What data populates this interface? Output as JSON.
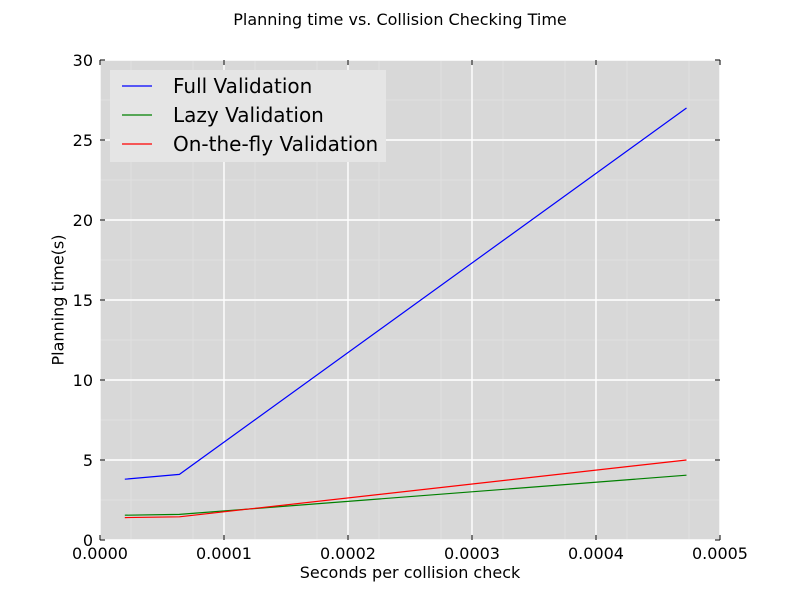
{
  "chart_data": {
    "type": "line",
    "title": "Planning time vs. Collision Checking Time",
    "xlabel": "Seconds per collision check",
    "ylabel": "Planning time(s)",
    "xlim": [
      0.0,
      0.0005
    ],
    "ylim": [
      0,
      30
    ],
    "xticks": [
      0.0,
      0.0001,
      0.0002,
      0.0003,
      0.0004,
      0.0005
    ],
    "xtick_labels": [
      "0.0000",
      "0.0001",
      "0.0002",
      "0.0003",
      "0.0004",
      "0.0005"
    ],
    "yticks": [
      0,
      5,
      10,
      15,
      20,
      25,
      30
    ],
    "ytick_labels": [
      "0",
      "5",
      "10",
      "15",
      "20",
      "25",
      "30"
    ],
    "grid": true,
    "legend_position": "top-left",
    "series": [
      {
        "name": "Full Validation",
        "color": "#0000ff",
        "x": [
          2e-05,
          6.4e-05,
          0.000473
        ],
        "y": [
          3.8,
          4.1,
          27.0
        ]
      },
      {
        "name": "Lazy Validation",
        "color": "#008000",
        "x": [
          2e-05,
          6.4e-05,
          0.000473
        ],
        "y": [
          1.55,
          1.6,
          4.05
        ]
      },
      {
        "name": "On-the-fly Validation",
        "color": "#ff0000",
        "x": [
          2e-05,
          6.4e-05,
          0.000473
        ],
        "y": [
          1.4,
          1.45,
          5.0
        ]
      }
    ]
  }
}
